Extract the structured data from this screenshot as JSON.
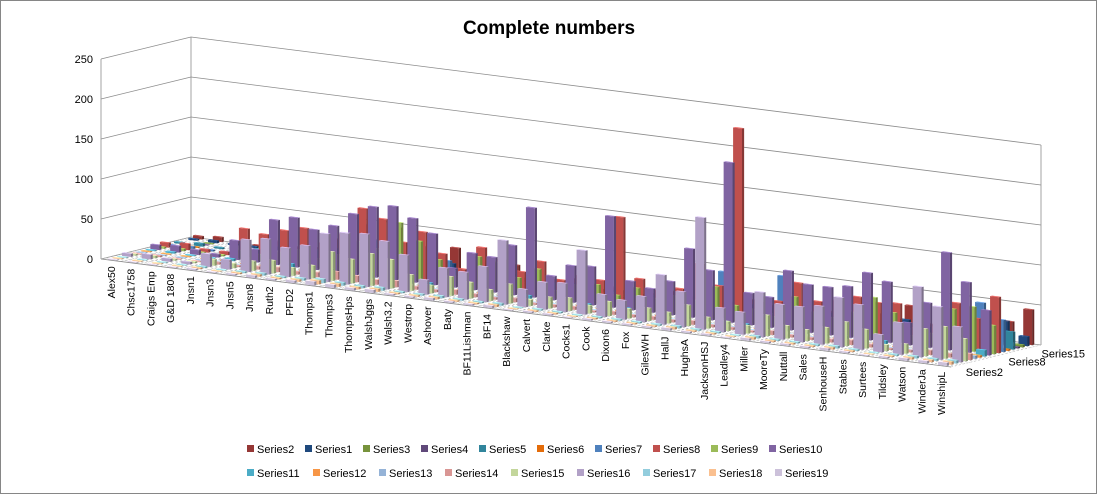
{
  "chart_data": {
    "type": "bar",
    "subtype": "3d-column",
    "title": "Complete numbers",
    "xlabel": "",
    "ylabel": "",
    "ylim": [
      0,
      250
    ],
    "yticks": [
      0,
      50,
      100,
      150,
      200,
      250
    ],
    "grid": true,
    "legend_position": "bottom",
    "categories_labeled": [
      "Alex50",
      "Chsc1758",
      "Craigs Emp",
      "G&D 1808",
      "Jnsn1",
      "Jnsn3",
      "Jnsn5",
      "Jnsn8",
      "Ruth2",
      "PFD2",
      "Thomps1",
      "Thomps3",
      "ThompsHps",
      "WalshJggs",
      "Walsh3.2",
      "Westrop",
      "Ashover",
      "Baty",
      "BF11Lishman",
      "BF14",
      "Blackshaw",
      "Calvert",
      "Clarke",
      "Cocks1",
      "Cook",
      "Dixon6",
      "Fox",
      "GilesWH",
      "HallJ",
      "HughsA",
      "JacksonHSJ",
      "Leadley4",
      "Miller",
      "MooreTy",
      "Nuttall",
      "Sales",
      "SenhouseH",
      "Stables",
      "Surtees",
      "Tildsley",
      "Watson",
      "WinderJa",
      "WinshipL"
    ],
    "depth_labels_shown": [
      "Series15",
      "Series8",
      "Series2"
    ],
    "series": [
      {
        "name": "Series2",
        "color": "#953735",
        "values": [
          4,
          6,
          3,
          2,
          10,
          6,
          8,
          22,
          7,
          12,
          46,
          20,
          14,
          30,
          10,
          8,
          18,
          12,
          6,
          10,
          5,
          6,
          8,
          4,
          10,
          6,
          8,
          6,
          12,
          8,
          6,
          4,
          10,
          6,
          8,
          12,
          30,
          10,
          4,
          6,
          36,
          26,
          44
        ]
      },
      {
        "name": "Series1",
        "color": "#1F497D",
        "values": [
          2,
          3,
          2,
          2,
          5,
          4,
          6,
          12,
          6,
          8,
          20,
          10,
          10,
          12,
          6,
          4,
          8,
          6,
          4,
          6,
          3,
          4,
          6,
          3,
          6,
          4,
          6,
          4,
          8,
          6,
          4,
          4,
          10,
          6,
          4,
          8,
          14,
          8,
          3,
          4,
          34,
          28,
          12
        ]
      },
      {
        "name": "Series3",
        "color": "#77933C",
        "values": [
          0,
          1,
          0,
          0,
          2,
          1,
          2,
          3,
          2,
          3,
          4,
          3,
          2,
          4,
          2,
          1,
          3,
          2,
          1,
          2,
          1,
          1,
          2,
          1,
          2,
          1,
          2,
          1,
          2,
          1,
          2,
          1,
          2,
          1,
          1,
          2,
          3,
          2,
          1,
          1,
          3,
          2,
          3
        ]
      },
      {
        "name": "Series4",
        "color": "#60497A",
        "values": [
          0,
          1,
          0,
          0,
          1,
          1,
          2,
          2,
          1,
          2,
          3,
          2,
          2,
          3,
          1,
          1,
          2,
          2,
          1,
          2,
          1,
          1,
          1,
          1,
          2,
          1,
          1,
          1,
          2,
          1,
          1,
          1,
          2,
          1,
          1,
          2,
          2,
          2,
          1,
          1,
          2,
          2,
          2
        ]
      },
      {
        "name": "Series5",
        "color": "#31859C",
        "values": [
          2,
          4,
          2,
          1,
          6,
          5,
          10,
          14,
          8,
          12,
          36,
          18,
          16,
          20,
          10,
          8,
          14,
          10,
          6,
          10,
          5,
          6,
          8,
          4,
          10,
          6,
          8,
          6,
          10,
          6,
          6,
          4,
          12,
          8,
          6,
          8,
          16,
          10,
          4,
          6,
          16,
          12,
          22
        ]
      },
      {
        "name": "Series6",
        "color": "#E46C0A",
        "values": [
          0,
          1,
          0,
          0,
          1,
          1,
          2,
          2,
          1,
          2,
          4,
          2,
          2,
          3,
          1,
          1,
          2,
          2,
          1,
          2,
          1,
          1,
          1,
          1,
          2,
          1,
          1,
          1,
          2,
          1,
          1,
          1,
          2,
          1,
          1,
          2,
          2,
          2,
          1,
          1,
          2,
          2,
          2
        ]
      },
      {
        "name": "Series7",
        "color": "#4F81BD",
        "values": [
          2,
          3,
          2,
          2,
          8,
          6,
          10,
          14,
          10,
          16,
          58,
          30,
          20,
          40,
          26,
          12,
          30,
          16,
          8,
          12,
          6,
          40,
          8,
          6,
          10,
          8,
          10,
          8,
          56,
          10,
          8,
          60,
          12,
          8,
          6,
          8,
          28,
          10,
          6,
          8,
          50,
          58,
          40
        ]
      },
      {
        "name": "Series8",
        "color": "#C0504D",
        "values": [
          6,
          8,
          4,
          4,
          36,
          32,
          40,
          46,
          30,
          44,
          80,
          70,
          44,
          60,
          36,
          20,
          50,
          38,
          26,
          42,
          22,
          30,
          28,
          110,
          36,
          24,
          30,
          64,
          40,
          240,
          26,
          30,
          56,
          36,
          40,
          48,
          44,
          46,
          18,
          22,
          56,
          40,
          70
        ]
      },
      {
        "name": "Series9",
        "color": "#9BBB59",
        "values": [
          2,
          3,
          2,
          2,
          10,
          8,
          14,
          20,
          12,
          20,
          40,
          34,
          70,
          50,
          30,
          12,
          40,
          36,
          20,
          34,
          10,
          20,
          24,
          14,
          26,
          16,
          22,
          20,
          40,
          20,
          18,
          12,
          40,
          24,
          20,
          30,
          52,
          36,
          10,
          16,
          50,
          56,
          36
        ]
      },
      {
        "name": "Series10",
        "color": "#8064A2",
        "values": [
          6,
          8,
          6,
          4,
          24,
          16,
          56,
          62,
          50,
          58,
          76,
          88,
          92,
          80,
          64,
          24,
          46,
          44,
          62,
          112,
          30,
          46,
          48,
          114,
          36,
          30,
          42,
          86,
          62,
          200,
          40,
          38,
          74,
          60,
          60,
          64,
          84,
          76,
          28,
          56,
          122,
          88,
          56
        ]
      },
      {
        "name": "Series11",
        "color": "#4BACC6",
        "values": [
          1,
          2,
          1,
          1,
          3,
          2,
          4,
          6,
          4,
          6,
          12,
          8,
          6,
          8,
          4,
          3,
          6,
          4,
          3,
          4,
          2,
          3,
          3,
          2,
          4,
          3,
          4,
          3,
          4,
          3,
          3,
          2,
          4,
          3,
          3,
          4,
          6,
          4,
          2,
          3,
          6,
          6,
          8
        ]
      },
      {
        "name": "Series12",
        "color": "#F79646",
        "values": [
          1,
          1,
          1,
          1,
          2,
          1,
          2,
          3,
          2,
          3,
          4,
          3,
          3,
          4,
          2,
          1,
          3,
          2,
          1,
          2,
          1,
          1,
          2,
          1,
          2,
          1,
          2,
          1,
          2,
          1,
          1,
          1,
          2,
          1,
          1,
          2,
          3,
          2,
          1,
          1,
          3,
          2,
          3
        ]
      },
      {
        "name": "Series13",
        "color": "#95B3D7",
        "values": [
          1,
          1,
          1,
          1,
          2,
          1,
          2,
          3,
          2,
          3,
          6,
          4,
          3,
          4,
          2,
          2,
          3,
          2,
          2,
          3,
          1,
          2,
          2,
          1,
          2,
          2,
          2,
          2,
          3,
          2,
          2,
          1,
          3,
          2,
          2,
          2,
          3,
          2,
          1,
          2,
          4,
          3,
          4
        ]
      },
      {
        "name": "Series14",
        "color": "#D99694",
        "values": [
          1,
          2,
          1,
          1,
          3,
          2,
          4,
          6,
          4,
          6,
          10,
          8,
          6,
          8,
          4,
          3,
          6,
          4,
          3,
          5,
          2,
          3,
          4,
          2,
          4,
          3,
          4,
          3,
          5,
          3,
          3,
          2,
          5,
          3,
          3,
          4,
          6,
          4,
          2,
          3,
          6,
          5,
          8
        ]
      },
      {
        "name": "Series15",
        "color": "#C3D69B",
        "values": [
          2,
          3,
          2,
          2,
          8,
          6,
          12,
          16,
          10,
          16,
          36,
          30,
          40,
          36,
          20,
          10,
          24,
          20,
          14,
          24,
          8,
          14,
          16,
          10,
          18,
          12,
          16,
          14,
          26,
          14,
          12,
          10,
          26,
          16,
          14,
          20,
          30,
          24,
          8,
          12,
          34,
          40,
          28
        ]
      },
      {
        "name": "Series16",
        "color": "#B2A1C7",
        "values": [
          4,
          6,
          4,
          3,
          16,
          12,
          40,
          44,
          36,
          42,
          60,
          64,
          66,
          60,
          46,
          18,
          36,
          34,
          44,
          80,
          22,
          34,
          36,
          80,
          28,
          24,
          32,
          62,
          44,
          140,
          30,
          28,
          56,
          44,
          44,
          48,
          62,
          56,
          22,
          40,
          88,
          66,
          44
        ]
      },
      {
        "name": "Series17",
        "color": "#93CDDD",
        "values": [
          1,
          1,
          1,
          1,
          2,
          1,
          2,
          3,
          2,
          3,
          5,
          4,
          3,
          4,
          2,
          2,
          3,
          2,
          2,
          3,
          1,
          2,
          2,
          1,
          2,
          2,
          2,
          2,
          3,
          2,
          2,
          1,
          3,
          2,
          2,
          2,
          3,
          2,
          1,
          2,
          3,
          3,
          4
        ]
      },
      {
        "name": "Series18",
        "color": "#FAC090",
        "values": [
          1,
          1,
          1,
          1,
          2,
          1,
          2,
          3,
          2,
          3,
          5,
          4,
          3,
          4,
          2,
          2,
          3,
          2,
          2,
          3,
          1,
          2,
          2,
          1,
          2,
          2,
          2,
          2,
          3,
          2,
          2,
          1,
          3,
          2,
          2,
          2,
          3,
          2,
          1,
          2,
          3,
          3,
          4
        ]
      },
      {
        "name": "Series19",
        "color": "#CCC1DA",
        "values": [
          1,
          1,
          1,
          1,
          2,
          1,
          2,
          3,
          2,
          3,
          5,
          4,
          3,
          4,
          2,
          2,
          3,
          2,
          2,
          3,
          1,
          2,
          2,
          1,
          2,
          2,
          2,
          2,
          3,
          2,
          2,
          1,
          3,
          2,
          2,
          2,
          3,
          2,
          1,
          2,
          3,
          3,
          4
        ]
      }
    ],
    "legend_rows": [
      [
        "Series2",
        "Series1",
        "Series3",
        "Series4",
        "Series5",
        "Series6",
        "Series7",
        "Series8",
        "Series9",
        "Series10"
      ],
      [
        "Series11",
        "Series12",
        "Series13",
        "Series14",
        "Series15",
        "Series16",
        "Series17",
        "Series18",
        "Series19"
      ]
    ]
  }
}
